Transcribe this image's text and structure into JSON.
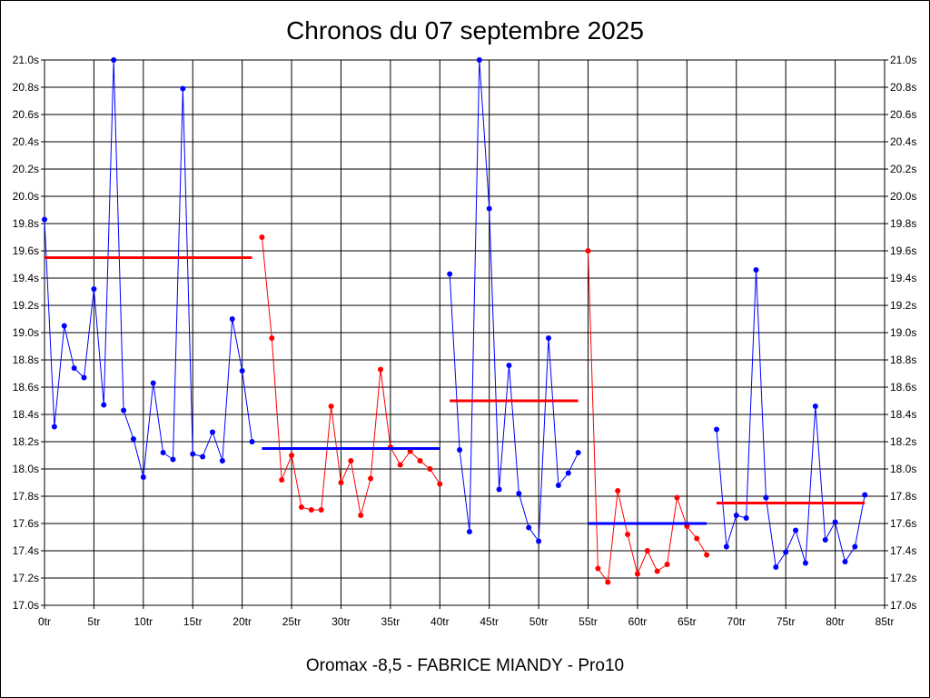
{
  "chart_data": {
    "type": "line",
    "title": "Chronos du 07 septembre 2025",
    "footer": "Oromax -8,5 - FABRICE MIANDY - Pro10",
    "x_range": [
      0,
      85
    ],
    "y_range": [
      17.0,
      21.0
    ],
    "x_ticks": [
      "0tr",
      "5tr",
      "10tr",
      "15tr",
      "20tr",
      "25tr",
      "30tr",
      "35tr",
      "40tr",
      "45tr",
      "50tr",
      "55tr",
      "60tr",
      "65tr",
      "70tr",
      "75tr",
      "80tr",
      "85tr"
    ],
    "y_ticks": [
      "17.0s",
      "17.2s",
      "17.4s",
      "17.6s",
      "17.8s",
      "18.0s",
      "18.2s",
      "18.4s",
      "18.6s",
      "18.8s",
      "19.0s",
      "19.2s",
      "19.4s",
      "19.6s",
      "19.8s",
      "20.0s",
      "20.2s",
      "20.4s",
      "20.6s",
      "20.8s",
      "21.0s"
    ],
    "grid": true,
    "segments": [
      {
        "color": "#0000ff",
        "average": {
          "value": 19.55,
          "color": "#ff0000"
        },
        "points": [
          [
            0,
            19.83
          ],
          [
            1,
            18.31
          ],
          [
            2,
            19.05
          ],
          [
            3,
            18.74
          ],
          [
            4,
            18.67
          ],
          [
            5,
            19.32
          ],
          [
            6,
            18.47
          ],
          [
            7,
            21.0
          ],
          [
            8,
            18.43
          ],
          [
            9,
            18.22
          ],
          [
            10,
            17.94
          ],
          [
            11,
            18.63
          ],
          [
            12,
            18.12
          ],
          [
            13,
            18.07
          ],
          [
            14,
            20.79
          ],
          [
            15,
            18.11
          ],
          [
            16,
            18.09
          ],
          [
            17,
            18.27
          ],
          [
            18,
            18.06
          ],
          [
            19,
            19.1
          ],
          [
            20,
            18.72
          ],
          [
            21,
            18.2
          ]
        ]
      },
      {
        "color": "#ff0000",
        "average": {
          "value": 18.15,
          "color": "#0000ff"
        },
        "points": [
          [
            22,
            19.7
          ],
          [
            23,
            18.96
          ],
          [
            24,
            17.92
          ],
          [
            25,
            18.1
          ],
          [
            26,
            17.72
          ],
          [
            27,
            17.7
          ],
          [
            28,
            17.7
          ],
          [
            29,
            18.46
          ],
          [
            30,
            17.9
          ],
          [
            31,
            18.06
          ],
          [
            32,
            17.66
          ],
          [
            33,
            17.93
          ],
          [
            34,
            18.73
          ],
          [
            35,
            18.16
          ],
          [
            36,
            18.03
          ],
          [
            37,
            18.13
          ],
          [
            38,
            18.06
          ],
          [
            39,
            18.0
          ],
          [
            40,
            17.89
          ]
        ]
      },
      {
        "color": "#0000ff",
        "average": {
          "value": 18.5,
          "color": "#ff0000"
        },
        "points": [
          [
            41,
            19.43
          ],
          [
            42,
            18.14
          ],
          [
            43,
            17.54
          ],
          [
            44,
            21.0
          ],
          [
            45,
            19.91
          ],
          [
            46,
            17.85
          ],
          [
            47,
            18.76
          ],
          [
            48,
            17.82
          ],
          [
            49,
            17.57
          ],
          [
            50,
            17.47
          ],
          [
            51,
            18.96
          ],
          [
            52,
            17.88
          ],
          [
            53,
            17.97
          ],
          [
            54,
            18.12
          ]
        ]
      },
      {
        "color": "#ff0000",
        "average": {
          "value": 17.6,
          "color": "#0000ff"
        },
        "points": [
          [
            55,
            19.6
          ],
          [
            56,
            17.27
          ],
          [
            57,
            17.17
          ],
          [
            58,
            17.84
          ],
          [
            59,
            17.52
          ],
          [
            60,
            17.23
          ],
          [
            61,
            17.4
          ],
          [
            62,
            17.25
          ],
          [
            63,
            17.3
          ],
          [
            64,
            17.79
          ],
          [
            65,
            17.58
          ],
          [
            66,
            17.49
          ],
          [
            67,
            17.37
          ]
        ]
      },
      {
        "color": "#0000ff",
        "average": {
          "value": 17.75,
          "color": "#ff0000"
        },
        "points": [
          [
            68,
            18.29
          ],
          [
            69,
            17.43
          ],
          [
            70,
            17.66
          ],
          [
            71,
            17.64
          ],
          [
            72,
            19.46
          ],
          [
            73,
            17.79
          ],
          [
            74,
            17.28
          ],
          [
            75,
            17.39
          ],
          [
            76,
            17.55
          ],
          [
            77,
            17.31
          ],
          [
            78,
            18.46
          ],
          [
            79,
            17.48
          ],
          [
            80,
            17.61
          ],
          [
            81,
            17.32
          ],
          [
            82,
            17.43
          ],
          [
            83,
            17.81
          ]
        ]
      }
    ]
  }
}
